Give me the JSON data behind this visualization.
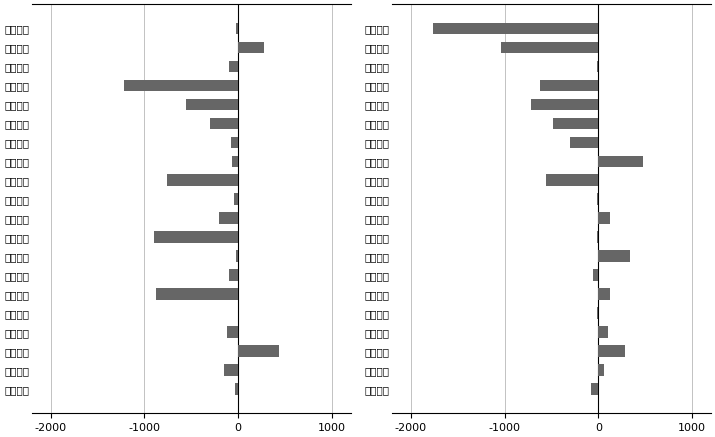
{
  "left": {
    "labels": [
      "永安期货",
      "国泰君安",
      "南华期货",
      "银河期货",
      "海通期货",
      "方正中期",
      "宝城期货",
      "中国国际",
      "华泰长城",
      "国海良时",
      "浙商期货",
      "广发期货",
      "国信期货",
      "五矿期货",
      "新湖期货",
      "申万期货",
      "瑞达期货",
      "东吴期货",
      "中大期货",
      "徽商期货"
    ],
    "values": [
      -20,
      280,
      -100,
      -1220,
      -560,
      -300,
      -80,
      -60,
      -760,
      -40,
      -200,
      -900,
      -20,
      -100,
      -880,
      0,
      -120,
      440,
      -150,
      -30
    ]
  },
  "right": {
    "labels": [
      "银河期货",
      "华泰长城",
      "东证期货",
      "永安期货",
      "中国国际",
      "国贸期货",
      "中信期货",
      "上海中期",
      "申万期货",
      "新湖期货",
      "广发期货",
      "兴证期货",
      "五矿期货",
      "国泰君安",
      "冠通期货",
      "中信建投",
      "南华期货",
      "格林大华",
      "国信期货",
      "金瑞期货"
    ],
    "values": [
      -1760,
      -1040,
      -20,
      -620,
      -720,
      -480,
      -300,
      480,
      -560,
      -20,
      120,
      -20,
      340,
      -60,
      120,
      -20,
      100,
      280,
      60,
      -80
    ]
  },
  "bar_color": "#666666",
  "xlim": [
    -2200,
    1200
  ],
  "xticks": [
    -2000,
    -1000,
    0,
    1000
  ],
  "fontsize": 7.5,
  "tick_fontsize": 8
}
